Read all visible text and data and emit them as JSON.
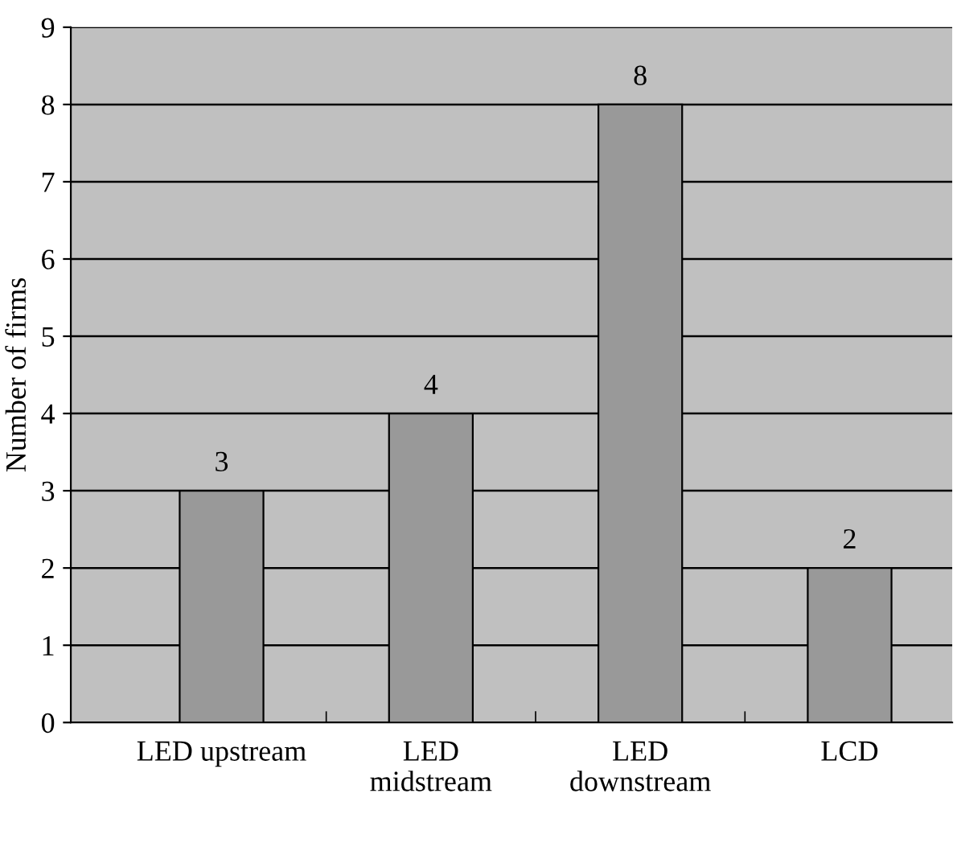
{
  "chart_data": {
    "type": "bar",
    "ylabel": "Number of firms",
    "categories": [
      "LED upstream",
      "LED\nmidstream",
      "LED\ndownstream",
      "LCD"
    ],
    "values": [
      3,
      4,
      8,
      2
    ],
    "color": "#999999",
    "ylim": [
      0,
      9
    ],
    "yticks": [
      0,
      1,
      2,
      3,
      4,
      5,
      6,
      7,
      8,
      9
    ],
    "grid": "y",
    "data_labels": true
  }
}
